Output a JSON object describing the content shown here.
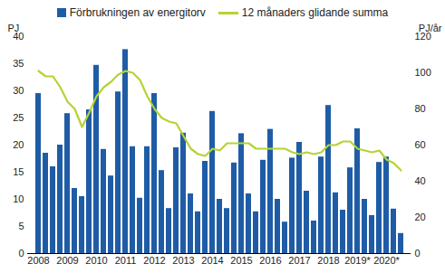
{
  "chart_data": {
    "type": "bar",
    "categories": [
      "2008",
      null,
      null,
      null,
      "2009",
      null,
      null,
      null,
      "2010",
      null,
      null,
      null,
      "2011",
      null,
      null,
      null,
      "2012",
      null,
      null,
      null,
      "2013",
      null,
      null,
      null,
      "2014",
      null,
      null,
      null,
      "2015",
      null,
      null,
      null,
      "2016",
      null,
      null,
      null,
      "2017",
      null,
      null,
      null,
      "2018",
      null,
      null,
      null,
      "2019*",
      null,
      null,
      null,
      "2020*",
      null,
      null
    ],
    "series": [
      {
        "name": "Förbrukningen av energitorv",
        "type": "bar",
        "color": "#1f5ca6",
        "values": [
          29.5,
          18.5,
          16,
          20,
          25.8,
          12,
          10.5,
          26.5,
          34.7,
          19.2,
          14.3,
          29.8,
          37.6,
          19.7,
          10.2,
          19.7,
          29.5,
          15.3,
          8.3,
          19.5,
          22.2,
          11,
          7.7,
          17,
          26.2,
          10,
          8.3,
          16.7,
          22.1,
          11,
          7.7,
          17.2,
          22.9,
          10,
          5.8,
          17.6,
          20.5,
          11.5,
          6,
          17.8,
          27.3,
          11.2,
          8,
          15.8,
          23,
          10,
          7,
          16.8,
          17.8,
          8.2,
          3.7
        ]
      },
      {
        "name": "12 månaders glidande summa",
        "type": "line",
        "axis": "y2",
        "color": "#b5d334",
        "values": [
          101,
          98,
          98,
          92,
          84,
          80,
          70,
          78,
          87,
          92,
          95,
          99,
          101,
          100,
          96,
          87,
          80,
          75,
          73,
          72,
          65,
          58,
          55,
          54,
          58,
          57,
          61,
          61,
          61,
          61,
          58,
          58,
          58,
          58,
          58,
          56,
          55,
          56,
          55,
          56,
          60,
          60,
          62,
          62,
          58,
          57,
          56,
          57,
          52,
          50,
          46
        ]
      }
    ],
    "y_label": "PJ",
    "y2_label": "PJ/år",
    "ylim": [
      0,
      40
    ],
    "yticks": [
      0,
      5,
      10,
      15,
      20,
      25,
      30,
      35,
      40
    ],
    "y2lim": [
      0,
      120
    ],
    "y2ticks": [
      0,
      20,
      40,
      60,
      80,
      100,
      120
    ],
    "grid": false,
    "legend": "top"
  }
}
